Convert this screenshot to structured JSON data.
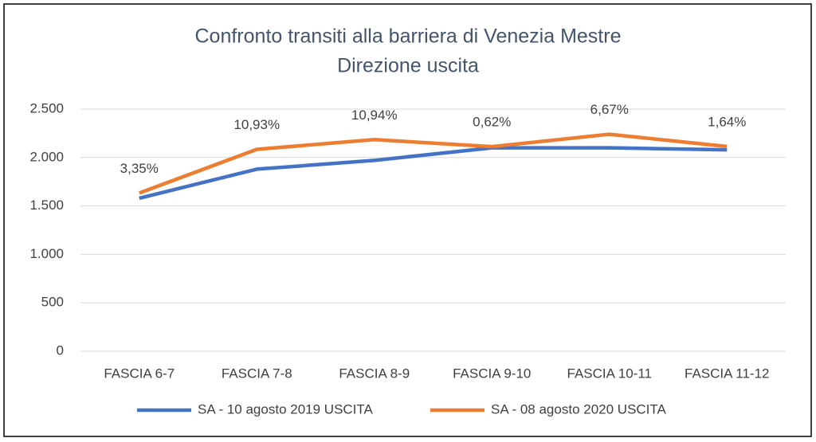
{
  "chart_data": {
    "type": "line",
    "title": [
      "Confronto transiti alla barriera di Venezia Mestre",
      "Direzione uscita"
    ],
    "categories": [
      "FASCIA 6-7",
      "FASCIA 7-8",
      "FASCIA 8-9",
      "FASCIA 9-10",
      "FASCIA 10-11",
      "FASCIA 11-12"
    ],
    "series": [
      {
        "name": "SA - 10 agosto 2019 USCITA",
        "color": "#4472c4",
        "values": [
          1580,
          1880,
          1970,
          2100,
          2100,
          2080
        ]
      },
      {
        "name": "SA - 08 agosto 2020 USCITA",
        "color": "#ed7d31",
        "values": [
          1633,
          2085,
          2185,
          2113,
          2240,
          2114
        ]
      }
    ],
    "annotations": [
      "3,35%",
      "10,93%",
      "10,94%",
      "0,62%",
      "6,67%",
      "1,64%"
    ],
    "ylim": [
      0,
      2500
    ],
    "yticks": [
      0,
      500,
      {
        "value": 1000,
        "label": "1.000"
      },
      {
        "value": 1500,
        "label": "1.500"
      },
      {
        "value": 2000,
        "label": "2.000"
      },
      {
        "value": 2500,
        "label": "2.500"
      }
    ],
    "grid": true,
    "legend": "bottom"
  }
}
